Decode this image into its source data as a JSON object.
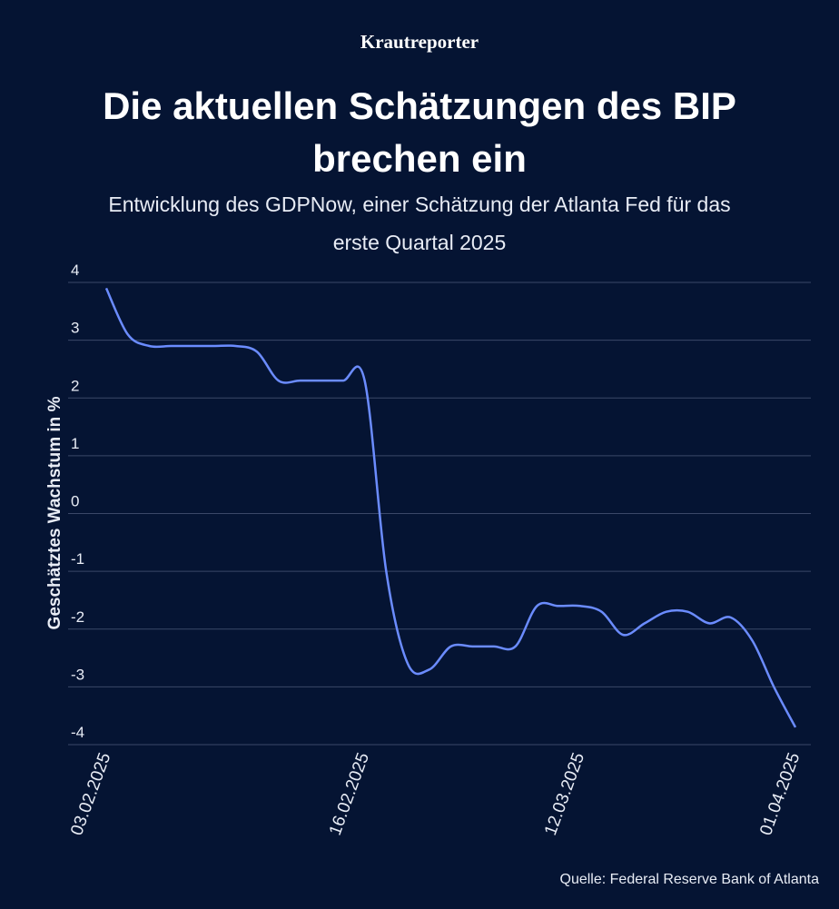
{
  "brand": "Krautreporter",
  "source": "Quelle: Federal Reserve Bank of Atlanta",
  "chart_data": {
    "type": "line",
    "title": "Die aktuellen Schätzungen des BIP brechen ein",
    "subtitle": "Entwicklung des GDPNow, einer Schätzung der Atlanta Fed für das erste Quartal 2025",
    "y_label": "Geschätztes Wachstum in %",
    "categories": [
      "03.02.2025",
      null,
      null,
      null,
      null,
      null,
      null,
      null,
      null,
      null,
      null,
      null,
      "16.02.2025",
      null,
      null,
      null,
      null,
      null,
      null,
      null,
      null,
      null,
      "12.03.2025",
      null,
      null,
      null,
      null,
      null,
      null,
      null,
      null,
      null,
      "01.04.2025"
    ],
    "series": [
      {
        "name": "GDPNow",
        "color": "#6b8cff",
        "values": [
          3.9,
          3.1,
          2.9,
          2.9,
          2.9,
          2.9,
          2.9,
          2.8,
          2.3,
          2.3,
          2.3,
          2.3,
          2.3,
          -1.0,
          -2.6,
          -2.7,
          -2.3,
          -2.3,
          -2.3,
          -2.3,
          -1.6,
          -1.6,
          -1.6,
          -1.7,
          -2.1,
          -1.9,
          -1.7,
          -1.7,
          -1.9,
          -1.8,
          -2.2,
          -3.0,
          -3.7
        ]
      }
    ],
    "ylim": [
      -4,
      4
    ],
    "yticks": [
      4,
      3,
      2,
      1,
      0,
      -1,
      -2,
      -3,
      -4
    ],
    "grid": true
  }
}
